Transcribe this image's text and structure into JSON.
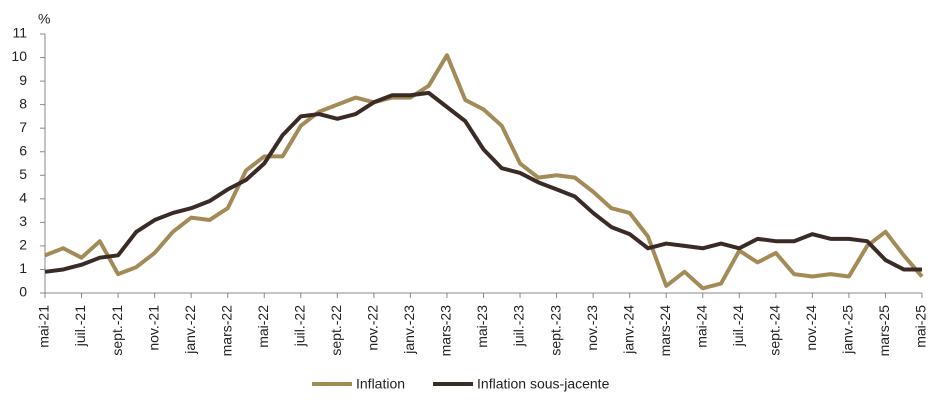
{
  "chart_data": {
    "type": "line",
    "y_label": "%",
    "categories": [
      "mai-21",
      null,
      "juil.-21",
      null,
      "sept.-21",
      null,
      "nov.-21",
      null,
      "janv.-22",
      null,
      "mars-22",
      null,
      "mai-22",
      null,
      "juil.-22",
      null,
      "sept.-22",
      null,
      "nov.-22",
      null,
      "janv.-23",
      null,
      "mars-23",
      null,
      "mai-23",
      null,
      "juil.-23",
      null,
      "sept.-23",
      null,
      "nov.-23",
      null,
      "janv.-24",
      null,
      "mars-24",
      null,
      "mai-24",
      null,
      "juil.-24",
      null,
      "sept.-24",
      null,
      "nov.-24",
      null,
      "janv.-25",
      null,
      "mars-25",
      null,
      "mai-25"
    ],
    "series": [
      {
        "name": "Inflation",
        "color": "#a38b57",
        "values": [
          1.6,
          1.9,
          1.5,
          2.2,
          0.8,
          1.1,
          1.7,
          2.6,
          3.2,
          3.1,
          3.6,
          5.2,
          5.8,
          5.8,
          7.1,
          7.7,
          8.0,
          8.3,
          8.1,
          8.3,
          8.3,
          8.8,
          10.1,
          8.2,
          7.8,
          7.1,
          5.5,
          4.9,
          5.0,
          4.9,
          4.3,
          3.6,
          3.4,
          2.4,
          0.3,
          0.9,
          0.2,
          0.4,
          1.8,
          1.3,
          1.7,
          0.8,
          0.7,
          0.8,
          0.7,
          2.0,
          2.6,
          1.6,
          0.7
        ]
      },
      {
        "name": "Inflation sous-jacente",
        "color": "#3b2b26",
        "values": [
          0.9,
          1.0,
          1.2,
          1.5,
          1.6,
          2.6,
          3.1,
          3.4,
          3.6,
          3.9,
          4.4,
          4.8,
          5.5,
          6.7,
          7.5,
          7.6,
          7.4,
          7.6,
          8.1,
          8.4,
          8.4,
          8.5,
          7.9,
          7.3,
          6.1,
          5.3,
          5.1,
          4.7,
          4.4,
          4.1,
          3.4,
          2.8,
          2.5,
          1.9,
          2.1,
          2.0,
          1.9,
          2.1,
          1.9,
          2.3,
          2.2,
          2.2,
          2.5,
          2.3,
          2.3,
          2.2,
          1.4,
          1.0,
          1.0
        ]
      }
    ],
    "ylim": [
      0,
      11
    ],
    "yticks": [
      0,
      1,
      2,
      3,
      4,
      5,
      6,
      7,
      8,
      9,
      10,
      11
    ],
    "grid": false,
    "legend": "bottom"
  }
}
